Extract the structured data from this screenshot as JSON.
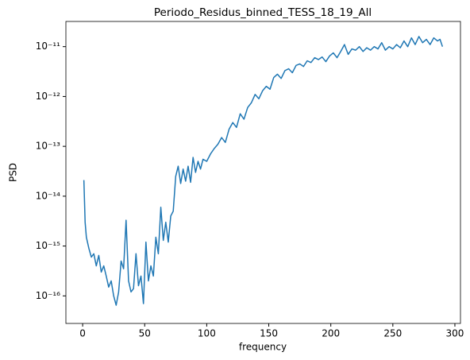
{
  "chart_data": {
    "type": "line",
    "title": "Periodo_Residus_binned_TESS_18_19_All",
    "xlabel": "frequency",
    "ylabel": "PSD",
    "x": [
      1,
      2,
      3,
      5,
      7,
      9,
      11,
      13,
      15,
      17,
      19,
      21,
      23,
      25,
      27,
      29,
      31,
      33,
      35,
      37,
      39,
      41,
      43,
      45,
      47,
      49,
      51,
      53,
      55,
      57,
      59,
      61,
      63,
      65,
      67,
      69,
      71,
      73,
      75,
      77,
      79,
      81,
      83,
      85,
      87,
      89,
      91,
      93,
      95,
      97,
      100,
      103,
      106,
      109,
      112,
      115,
      118,
      121,
      124,
      127,
      130,
      133,
      136,
      139,
      142,
      145,
      148,
      151,
      154,
      157,
      160,
      163,
      166,
      169,
      172,
      175,
      178,
      181,
      184,
      187,
      190,
      193,
      196,
      199,
      202,
      205,
      208,
      211,
      214,
      217,
      220,
      223,
      226,
      229,
      232,
      235,
      238,
      241,
      244,
      247,
      250,
      253,
      256,
      259,
      262,
      265,
      268,
      271,
      274,
      277,
      280,
      283,
      286,
      288,
      290
    ],
    "series": [
      {
        "name": "PSD",
        "color": "#1f77b4",
        "values": [
          2.1e-14,
          3e-15,
          1.5e-15,
          9e-16,
          6e-16,
          7e-16,
          4e-16,
          6.5e-16,
          3e-16,
          4e-16,
          2.5e-16,
          1.5e-16,
          2e-16,
          1e-16,
          6.5e-17,
          1.2e-16,
          5e-16,
          3.5e-16,
          3.3e-15,
          2e-16,
          1.2e-16,
          1.4e-16,
          7e-16,
          1.6e-16,
          2.5e-16,
          7e-17,
          1.2e-15,
          2e-16,
          4e-16,
          2.5e-16,
          1.5e-15,
          7e-16,
          6e-15,
          1.3e-15,
          3e-15,
          1.2e-15,
          4e-15,
          5e-15,
          2.5e-14,
          4e-14,
          1.8e-14,
          3.5e-14,
          2e-14,
          4e-14,
          1.9e-14,
          6e-14,
          3e-14,
          5e-14,
          3.5e-14,
          5.5e-14,
          5e-14,
          7e-14,
          9e-14,
          1.1e-13,
          1.5e-13,
          1.2e-13,
          2.2e-13,
          3e-13,
          2.4e-13,
          4.5e-13,
          3.5e-13,
          6e-13,
          7.5e-13,
          1.1e-12,
          9e-13,
          1.3e-12,
          1.6e-12,
          1.4e-12,
          2.4e-12,
          2.8e-12,
          2.3e-12,
          3.3e-12,
          3.6e-12,
          3e-12,
          4.2e-12,
          4.5e-12,
          4e-12,
          5.2e-12,
          4.8e-12,
          6e-12,
          5.5e-12,
          6.2e-12,
          5e-12,
          6.5e-12,
          7.5e-12,
          6e-12,
          8e-12,
          1.1e-11,
          7e-12,
          9e-12,
          8.5e-12,
          1e-11,
          8e-12,
          9.5e-12,
          8.5e-12,
          1e-11,
          9e-12,
          1.2e-11,
          8.5e-12,
          1e-11,
          9e-12,
          1.1e-11,
          9.5e-12,
          1.3e-11,
          1e-11,
          1.5e-11,
          1.1e-11,
          1.6e-11,
          1.2e-11,
          1.4e-11,
          1.1e-11,
          1.5e-11,
          1.3e-11,
          1.4e-11,
          1e-11
        ]
      }
    ],
    "xlim": [
      -13.5,
      304.5
    ],
    "xticks": [
      0,
      50,
      100,
      150,
      200,
      250,
      300
    ],
    "ylim": [
      2.8e-17,
      3.2e-11
    ],
    "log_y": true,
    "yticks": [
      {
        "value": 1e-16,
        "label": "10⁻¹⁶"
      },
      {
        "value": 1e-15,
        "label": "10⁻¹⁵"
      },
      {
        "value": 1e-14,
        "label": "10⁻¹⁴"
      },
      {
        "value": 1e-13,
        "label": "10⁻¹³"
      },
      {
        "value": 1e-12,
        "label": "10⁻¹²"
      },
      {
        "value": 1e-11,
        "label": "10⁻¹¹"
      }
    ],
    "grid": false
  }
}
